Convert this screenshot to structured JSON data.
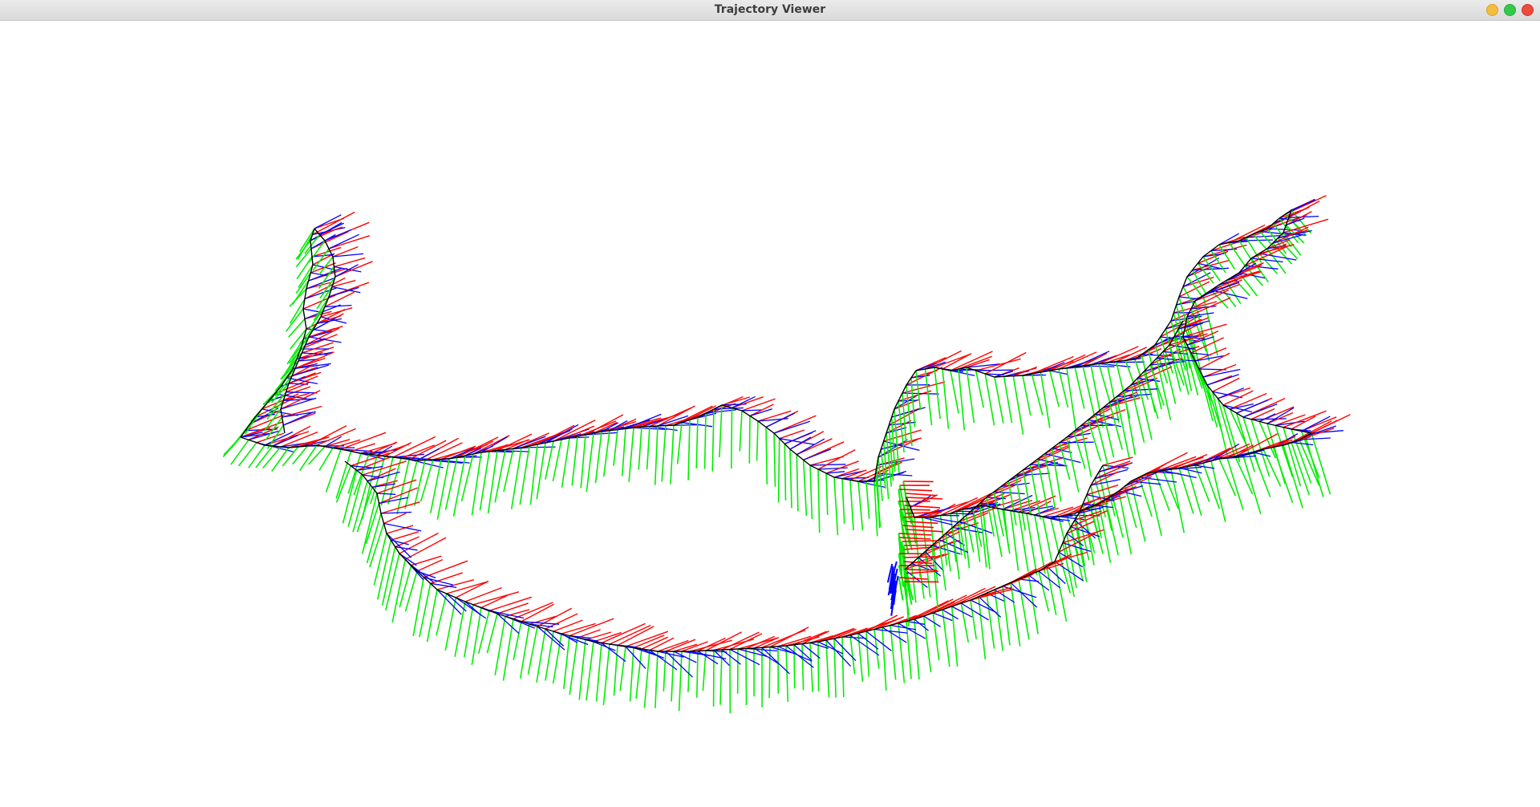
{
  "window": {
    "title": "Trajectory Viewer"
  },
  "window_controls": [
    {
      "name": "minimize",
      "color": "#f4bd3d"
    },
    {
      "name": "maximize",
      "color": "#35c94b"
    },
    {
      "name": "close",
      "color": "#ee4b3c"
    }
  ],
  "viewer": {
    "background": "#ffffff",
    "trajectory_color": "#000000",
    "axis_colors": {
      "x_axis": "#ff0000",
      "y_axis": "#00ee00",
      "z_axis": "#0000ff"
    }
  }
}
